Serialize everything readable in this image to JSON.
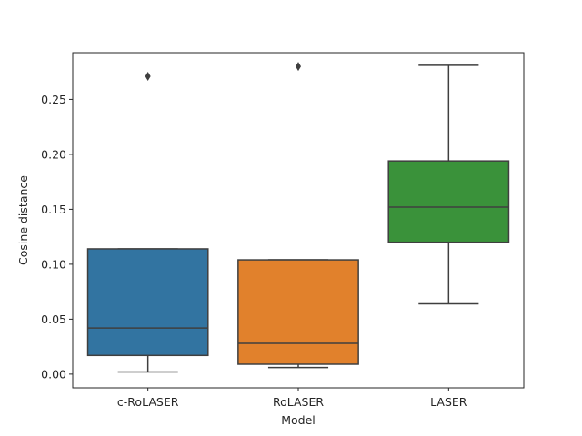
{
  "chart_data": {
    "type": "box",
    "title": "",
    "xlabel": "Model",
    "ylabel": "Cosine distance",
    "ylim": [
      -0.0125,
      0.2925
    ],
    "yticks": [
      0.0,
      0.05,
      0.1,
      0.15,
      0.2,
      0.25
    ],
    "ytick_labels": [
      "0.00",
      "0.05",
      "0.10",
      "0.15",
      "0.20",
      "0.25"
    ],
    "grid": false,
    "legend": "none",
    "categories": [
      "c-RoLASER",
      "RoLASER",
      "LASER"
    ],
    "colors": [
      "#3274a1",
      "#e1812c",
      "#3a923a"
    ],
    "boxes": [
      {
        "whisker_low": 0.002,
        "q1": 0.017,
        "median": 0.042,
        "q3": 0.114,
        "whisker_high": 0.114,
        "outliers": [
          0.271
        ]
      },
      {
        "whisker_low": 0.006,
        "q1": 0.009,
        "median": 0.028,
        "q3": 0.104,
        "whisker_high": 0.104,
        "outliers": [
          0.28
        ]
      },
      {
        "whisker_low": 0.064,
        "q1": 0.12,
        "median": 0.152,
        "q3": 0.194,
        "whisker_high": 0.281,
        "outliers": []
      }
    ]
  }
}
